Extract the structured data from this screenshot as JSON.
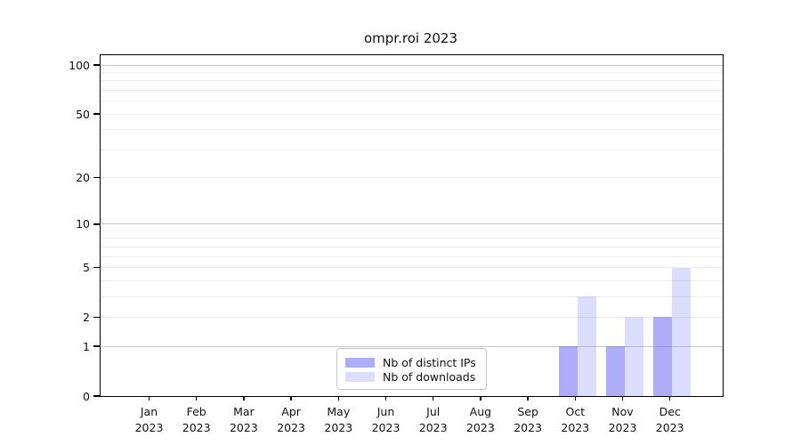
{
  "chart_data": {
    "type": "bar",
    "title": "ompr.roi 2023",
    "categories": [
      "Jan",
      "Feb",
      "Mar",
      "Apr",
      "May",
      "Jun",
      "Jul",
      "Aug",
      "Sep",
      "Oct",
      "Nov",
      "Dec"
    ],
    "year_label": "2023",
    "series": [
      {
        "name": "Nb of distinct IPs",
        "color": "rgba(100,100,245,0.53)",
        "values": [
          0,
          0,
          0,
          0,
          0,
          0,
          0,
          0,
          0,
          1,
          1,
          2
        ]
      },
      {
        "name": "Nb of downloads",
        "color": "rgba(100,100,245,0.22)",
        "values": [
          0,
          0,
          0,
          0,
          0,
          0,
          0,
          0,
          0,
          3,
          2,
          5
        ]
      }
    ],
    "yscale": "log1p",
    "ylim": [
      0,
      115
    ],
    "yticks": [
      0,
      1,
      2,
      5,
      10,
      20,
      50,
      100
    ],
    "gridlines": {
      "major": [
        1,
        10,
        100
      ],
      "minor": [
        2,
        3,
        4,
        5,
        6,
        7,
        8,
        9,
        20,
        30,
        40,
        50,
        60,
        70,
        80,
        90
      ]
    },
    "grid": "horizontal",
    "legend_position": "bottom-center",
    "colors": {
      "major_grid": "#c7c7c7",
      "minor_grid": "#efefef",
      "axis": "#000000",
      "legend_border": "#c8c8c8",
      "text": "#111111"
    }
  }
}
